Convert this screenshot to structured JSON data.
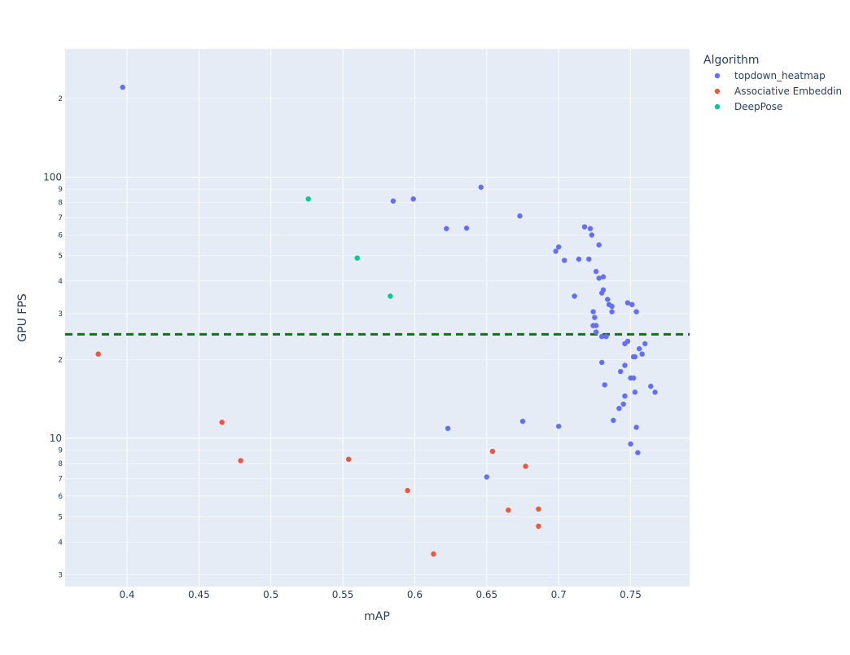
{
  "chart_data": {
    "type": "scatter",
    "title": "",
    "xlabel": "mAP",
    "ylabel": "GPU FPS",
    "x_scale": "linear",
    "y_scale": "log",
    "xlim": [
      0.357,
      0.791
    ],
    "ylim": [
      2.7,
      310
    ],
    "x_ticks": [
      0.4,
      0.45,
      0.5,
      0.55,
      0.6,
      0.65,
      0.7,
      0.75
    ],
    "x_tick_labels": [
      "0.4",
      "0.45",
      "0.5",
      "0.55",
      "0.6",
      "0.65",
      "0.7",
      "0.75"
    ],
    "y_major_ticks": [
      10,
      100
    ],
    "y_major_tick_labels": [
      "10",
      "100"
    ],
    "y_minor_ticks": [
      3,
      4,
      5,
      6,
      7,
      8,
      9,
      20,
      30,
      40,
      50,
      60,
      70,
      80,
      90,
      200
    ],
    "y_minor_tick_labels": [
      "3",
      "4",
      "5",
      "6",
      "7",
      "8",
      "9",
      "2",
      "3",
      "4",
      "5",
      "6",
      "7",
      "8",
      "9",
      "2"
    ],
    "grid": true,
    "legend_title": "Algorithm",
    "legend_position": "right",
    "reference_line": {
      "y": 25,
      "color": "#008000",
      "style": "dashed"
    },
    "series": [
      {
        "name": "topdown_heatmap",
        "color": "#636efa",
        "points": [
          [
            0.397,
            221
          ],
          [
            0.585,
            81
          ],
          [
            0.599,
            82.5
          ],
          [
            0.646,
            91.5
          ],
          [
            0.622,
            63.5
          ],
          [
            0.636,
            63.8
          ],
          [
            0.673,
            71
          ],
          [
            0.698,
            52
          ],
          [
            0.7,
            54
          ],
          [
            0.704,
            48
          ],
          [
            0.714,
            48.5
          ],
          [
            0.718,
            64.5
          ],
          [
            0.721,
            48.5
          ],
          [
            0.722,
            63.5
          ],
          [
            0.723,
            60
          ],
          [
            0.726,
            43.5
          ],
          [
            0.728,
            55
          ],
          [
            0.728,
            41
          ],
          [
            0.731,
            41.5
          ],
          [
            0.73,
            36
          ],
          [
            0.731,
            37
          ],
          [
            0.734,
            34
          ],
          [
            0.735,
            32.5
          ],
          [
            0.737,
            32
          ],
          [
            0.711,
            35
          ],
          [
            0.724,
            30.5
          ],
          [
            0.725,
            29
          ],
          [
            0.724,
            27
          ],
          [
            0.726,
            27
          ],
          [
            0.726,
            25.5
          ],
          [
            0.73,
            24.5
          ],
          [
            0.733,
            24.5
          ],
          [
            0.737,
            30.5
          ],
          [
            0.748,
            33
          ],
          [
            0.751,
            32.5
          ],
          [
            0.754,
            30.5
          ],
          [
            0.746,
            23
          ],
          [
            0.748,
            23.5
          ],
          [
            0.756,
            22
          ],
          [
            0.76,
            23
          ],
          [
            0.752,
            20.5
          ],
          [
            0.753,
            20.5
          ],
          [
            0.758,
            21
          ],
          [
            0.73,
            19.5
          ],
          [
            0.746,
            19
          ],
          [
            0.743,
            18
          ],
          [
            0.75,
            17
          ],
          [
            0.752,
            17
          ],
          [
            0.732,
            16
          ],
          [
            0.753,
            15
          ],
          [
            0.746,
            14.5
          ],
          [
            0.745,
            13.5
          ],
          [
            0.742,
            13
          ],
          [
            0.738,
            11.7
          ],
          [
            0.764,
            15.8
          ],
          [
            0.767,
            15
          ],
          [
            0.754,
            11
          ],
          [
            0.75,
            9.5
          ],
          [
            0.755,
            8.8
          ],
          [
            0.623,
            10.9
          ],
          [
            0.675,
            11.6
          ],
          [
            0.7,
            11.1
          ],
          [
            0.65,
            7.1
          ]
        ]
      },
      {
        "name": "Associative Embeddin",
        "color": "#ef553b",
        "points": [
          [
            0.38,
            21
          ],
          [
            0.466,
            11.5
          ],
          [
            0.479,
            8.2
          ],
          [
            0.554,
            8.3
          ],
          [
            0.595,
            6.3
          ],
          [
            0.613,
            3.6
          ],
          [
            0.654,
            8.9
          ],
          [
            0.665,
            5.3
          ],
          [
            0.677,
            7.8
          ],
          [
            0.686,
            5.35
          ],
          [
            0.686,
            4.6
          ]
        ]
      },
      {
        "name": "DeepPose",
        "color": "#00cc96",
        "points": [
          [
            0.526,
            82.5
          ],
          [
            0.56,
            49
          ],
          [
            0.583,
            35
          ]
        ]
      }
    ]
  }
}
